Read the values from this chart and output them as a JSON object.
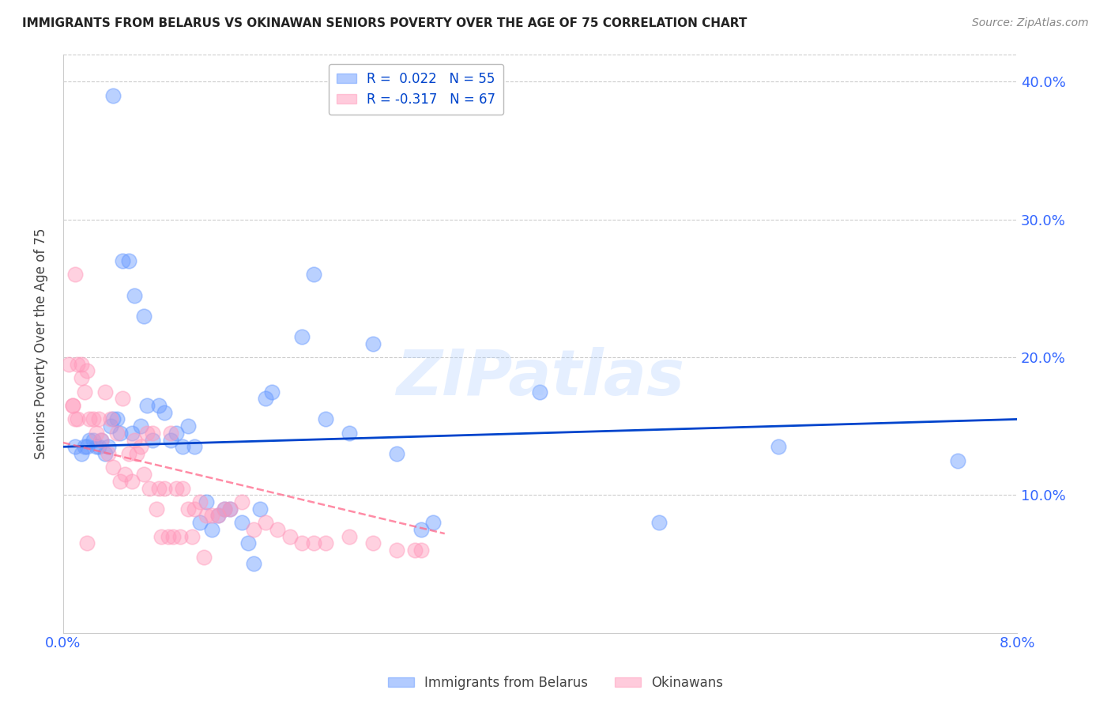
{
  "title": "IMMIGRANTS FROM BELARUS VS OKINAWAN SENIORS POVERTY OVER THE AGE OF 75 CORRELATION CHART",
  "source": "Source: ZipAtlas.com",
  "ylabel": "Seniors Poverty Over the Age of 75",
  "xlim": [
    0,
    0.08
  ],
  "ylim": [
    0,
    0.42
  ],
  "yticks": [
    0.1,
    0.2,
    0.3,
    0.4
  ],
  "ytick_labels": [
    "10.0%",
    "20.0%",
    "30.0%",
    "40.0%"
  ],
  "xticks": [
    0.0,
    0.02,
    0.04,
    0.06,
    0.08
  ],
  "xtick_labels": [
    "0.0%",
    "",
    "",
    "",
    "8.0%"
  ],
  "background_color": "#ffffff",
  "grid_color": "#cccccc",
  "blue_color": "#6699ff",
  "pink_color": "#ff99bb",
  "blue_line_color": "#0044cc",
  "pink_line_color": "#ff6688",
  "tick_label_color": "#3366ff",
  "legend_R1": "R =  0.022",
  "legend_N1": "N = 55",
  "legend_R2": "R = -0.317",
  "legend_N2": "N = 67",
  "watermark": "ZIPatlas",
  "blue_scatter_x": [
    0.0042,
    0.001,
    0.0015,
    0.0018,
    0.002,
    0.0022,
    0.0025,
    0.0028,
    0.003,
    0.0032,
    0.0035,
    0.0038,
    0.004,
    0.0042,
    0.0045,
    0.0048,
    0.005,
    0.0055,
    0.0058,
    0.006,
    0.0065,
    0.0068,
    0.007,
    0.0075,
    0.008,
    0.0085,
    0.009,
    0.0095,
    0.01,
    0.0105,
    0.011,
    0.0115,
    0.012,
    0.0125,
    0.013,
    0.0135,
    0.014,
    0.015,
    0.0155,
    0.016,
    0.0165,
    0.017,
    0.0175,
    0.02,
    0.021,
    0.022,
    0.024,
    0.026,
    0.028,
    0.03,
    0.031,
    0.04,
    0.05,
    0.06,
    0.075
  ],
  "blue_scatter_y": [
    0.39,
    0.135,
    0.13,
    0.135,
    0.135,
    0.14,
    0.14,
    0.135,
    0.135,
    0.14,
    0.13,
    0.135,
    0.15,
    0.155,
    0.155,
    0.145,
    0.27,
    0.27,
    0.145,
    0.245,
    0.15,
    0.23,
    0.165,
    0.14,
    0.165,
    0.16,
    0.14,
    0.145,
    0.135,
    0.15,
    0.135,
    0.08,
    0.095,
    0.075,
    0.085,
    0.09,
    0.09,
    0.08,
    0.065,
    0.05,
    0.09,
    0.17,
    0.175,
    0.215,
    0.26,
    0.155,
    0.145,
    0.21,
    0.13,
    0.075,
    0.08,
    0.175,
    0.08,
    0.135,
    0.125
  ],
  "pink_scatter_x": [
    0.0005,
    0.0008,
    0.001,
    0.0012,
    0.0015,
    0.0015,
    0.0018,
    0.002,
    0.0022,
    0.0025,
    0.0028,
    0.003,
    0.0032,
    0.0035,
    0.0038,
    0.004,
    0.0042,
    0.0045,
    0.0048,
    0.005,
    0.0052,
    0.0055,
    0.0058,
    0.006,
    0.0062,
    0.0065,
    0.0068,
    0.007,
    0.0072,
    0.0075,
    0.0078,
    0.008,
    0.0082,
    0.0085,
    0.0088,
    0.009,
    0.0092,
    0.0095,
    0.0098,
    0.01,
    0.0105,
    0.0108,
    0.011,
    0.0115,
    0.0118,
    0.012,
    0.0125,
    0.013,
    0.0135,
    0.014,
    0.015,
    0.016,
    0.017,
    0.018,
    0.019,
    0.02,
    0.021,
    0.022,
    0.024,
    0.026,
    0.028,
    0.0295,
    0.03,
    0.002,
    0.001,
    0.0008,
    0.0012
  ],
  "pink_scatter_y": [
    0.195,
    0.165,
    0.26,
    0.155,
    0.195,
    0.185,
    0.175,
    0.19,
    0.155,
    0.155,
    0.145,
    0.155,
    0.14,
    0.175,
    0.13,
    0.155,
    0.12,
    0.145,
    0.11,
    0.17,
    0.115,
    0.13,
    0.11,
    0.14,
    0.13,
    0.135,
    0.115,
    0.145,
    0.105,
    0.145,
    0.09,
    0.105,
    0.07,
    0.105,
    0.07,
    0.145,
    0.07,
    0.105,
    0.07,
    0.105,
    0.09,
    0.07,
    0.09,
    0.095,
    0.055,
    0.085,
    0.085,
    0.085,
    0.09,
    0.09,
    0.095,
    0.075,
    0.08,
    0.075,
    0.07,
    0.065,
    0.065,
    0.065,
    0.07,
    0.065,
    0.06,
    0.06,
    0.06,
    0.065,
    0.155,
    0.165,
    0.195
  ],
  "blue_line_x": [
    0.0,
    0.08
  ],
  "blue_line_y": [
    0.135,
    0.155
  ],
  "pink_line_x": [
    0.0,
    0.032
  ],
  "pink_line_y": [
    0.138,
    0.072
  ]
}
